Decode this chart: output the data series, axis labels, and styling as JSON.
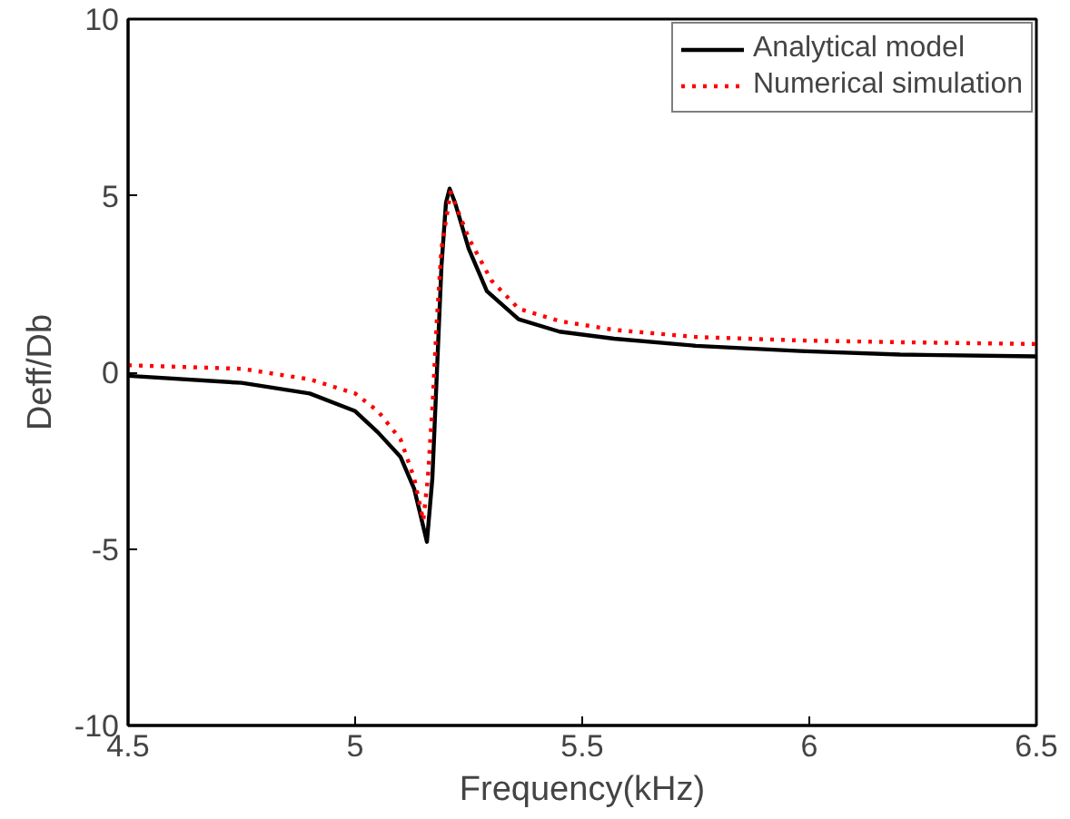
{
  "chart_data": {
    "type": "line",
    "xlabel": "Frequency(kHz)",
    "ylabel": "Deff/Db",
    "xlim": [
      4.5,
      6.5
    ],
    "ylim": [
      -10,
      10
    ],
    "xticks": [
      4.5,
      5,
      5.5,
      6,
      6.5
    ],
    "yticks": [
      -10,
      -5,
      0,
      5,
      10
    ],
    "grid": false,
    "legend": "top right",
    "marker": "none",
    "series": [
      {
        "name": "Analytical model",
        "color": "#000000",
        "line_style": "solid",
        "x": [
          4.5,
          4.75,
          4.9,
          5.0,
          5.05,
          5.1,
          5.13,
          5.145,
          5.158,
          5.17,
          5.18,
          5.19,
          5.2,
          5.208,
          5.22,
          5.25,
          5.29,
          5.36,
          5.45,
          5.57,
          5.75,
          5.98,
          6.2,
          6.5
        ],
        "values": [
          -0.1,
          -0.3,
          -0.6,
          -1.1,
          -1.7,
          -2.4,
          -3.3,
          -4.1,
          -4.8,
          -3.0,
          0,
          3.0,
          4.8,
          5.2,
          4.8,
          3.5,
          2.3,
          1.5,
          1.15,
          0.95,
          0.75,
          0.6,
          0.5,
          0.45
        ]
      },
      {
        "name": "Numerical simulation",
        "color": "#ff0000",
        "line_style": "dotted",
        "x": [
          4.5,
          4.75,
          4.9,
          5.0,
          5.05,
          5.1,
          5.13,
          5.15,
          5.16,
          5.17,
          5.18,
          5.19,
          5.21,
          5.25,
          5.3,
          5.36,
          5.45,
          5.57,
          5.75,
          5.98,
          6.2,
          6.5
        ],
        "values": [
          0.2,
          0.1,
          -0.2,
          -0.6,
          -1.1,
          -1.9,
          -3.0,
          -4.2,
          -3.0,
          -1.0,
          1.5,
          3.5,
          5.1,
          3.8,
          2.6,
          1.8,
          1.45,
          1.2,
          1.0,
          0.9,
          0.85,
          0.8
        ]
      }
    ]
  }
}
